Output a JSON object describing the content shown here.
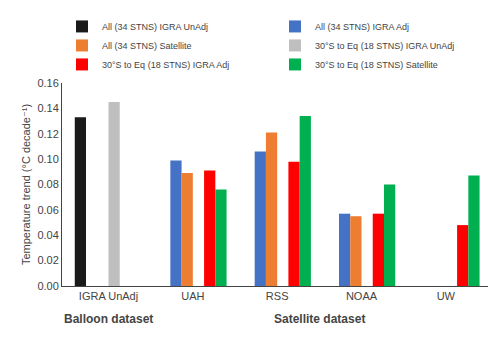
{
  "chart_data": {
    "type": "bar",
    "categories": [
      "IGRA UnAdj",
      "UAH",
      "RSS",
      "NOAA",
      "UW"
    ],
    "series": [
      {
        "name": "All (34 STNS) IGRA UnAdj",
        "color": "#1a1a1a",
        "values": [
          0.133,
          null,
          null,
          null,
          null
        ]
      },
      {
        "name": "All (34 STNS) IGRA Adj",
        "color": "#4472C4",
        "values": [
          null,
          0.099,
          0.106,
          0.057,
          null
        ]
      },
      {
        "name": "All (34 STNS) Satellite",
        "color": "#ED7D31",
        "values": [
          null,
          0.089,
          0.121,
          0.055,
          null
        ]
      },
      {
        "name": "30°S to Eq (18 STNS) IGRA UnAdj",
        "color": "#BFBFBF",
        "values": [
          0.145,
          null,
          null,
          null,
          null
        ]
      },
      {
        "name": "30°S to Eq (18 STNS) IGRA Adj",
        "color": "#FF0000",
        "values": [
          null,
          0.091,
          0.098,
          0.057,
          0.048
        ]
      },
      {
        "name": "30°S to Eq (18 STNS) Satellite",
        "color": "#00B050",
        "values": [
          null,
          0.076,
          0.134,
          0.08,
          0.087
        ]
      }
    ],
    "ylabel": "Temperature trend (°C decade⁻¹)",
    "ylim": [
      0.0,
      0.16
    ],
    "yticks": [
      {
        "value": 0,
        "label": "0.00"
      },
      0.02,
      0.04,
      0.06,
      0.08,
      {
        "value": 0.1,
        "label": "0.10"
      },
      0.12,
      0.14,
      0.16
    ],
    "annotations": [
      {
        "text": "Balloon dataset"
      },
      {
        "text": "Satellite dataset"
      }
    ],
    "legend": "top",
    "grid": false
  }
}
